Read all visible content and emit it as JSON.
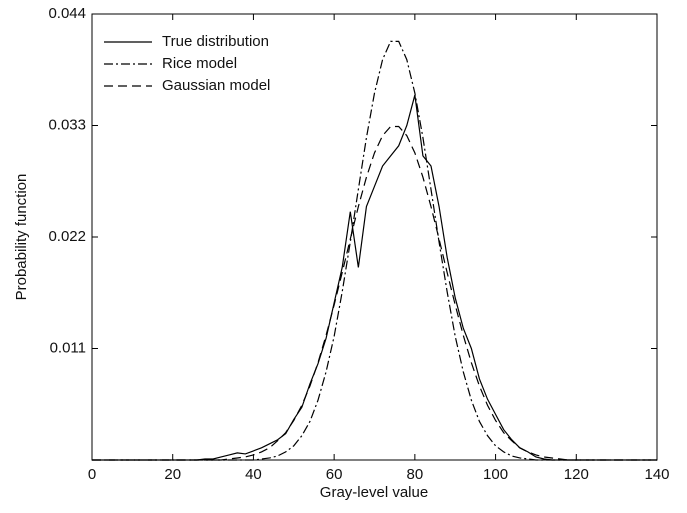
{
  "chart_data": {
    "type": "line",
    "xlabel": "Gray-level value",
    "ylabel": "Probability function",
    "x": [
      0,
      2,
      4,
      6,
      8,
      10,
      12,
      14,
      16,
      18,
      20,
      22,
      24,
      26,
      28,
      30,
      32,
      34,
      36,
      38,
      40,
      42,
      44,
      46,
      48,
      50,
      52,
      54,
      56,
      58,
      60,
      62,
      64,
      66,
      68,
      70,
      72,
      74,
      76,
      78,
      80,
      82,
      84,
      86,
      88,
      90,
      92,
      94,
      96,
      98,
      100,
      102,
      104,
      106,
      108,
      110,
      112,
      114,
      116,
      118,
      120,
      122,
      124,
      126,
      128,
      130,
      132,
      134,
      136,
      138,
      140
    ],
    "series": [
      {
        "name": "True distribution",
        "color": "#000000",
        "dash": "solid",
        "values": [
          0,
          0,
          0,
          0,
          0,
          0,
          0,
          0,
          0,
          0,
          0,
          0,
          0,
          0,
          0.0001,
          0.0001,
          0.0003,
          0.0005,
          0.0007,
          0.0006,
          0.0009,
          0.0012,
          0.0016,
          0.002,
          0.0026,
          0.004,
          0.0052,
          0.0075,
          0.0095,
          0.012,
          0.0155,
          0.019,
          0.0245,
          0.019,
          0.025,
          0.027,
          0.029,
          0.03,
          0.031,
          0.033,
          0.036,
          0.03,
          0.029,
          0.025,
          0.02,
          0.016,
          0.013,
          0.011,
          0.008,
          0.006,
          0.0045,
          0.003,
          0.002,
          0.0012,
          0.0008,
          0.0003,
          0.0001,
          0,
          0,
          0,
          0,
          0,
          0,
          0,
          0,
          0,
          0,
          0,
          0,
          0,
          0
        ]
      },
      {
        "name": "Rice model",
        "color": "#000000",
        "dash": "dashdot",
        "values": [
          0,
          0,
          0,
          0,
          0,
          0,
          0,
          0,
          0,
          0,
          0,
          0,
          0,
          0,
          0,
          0,
          0,
          0,
          0,
          0,
          0,
          0.0001,
          0.0002,
          0.0004,
          0.0008,
          0.0014,
          0.0024,
          0.0038,
          0.0059,
          0.0087,
          0.0122,
          0.0166,
          0.0215,
          0.0267,
          0.0318,
          0.0362,
          0.0395,
          0.0413,
          0.0413,
          0.0395,
          0.0362,
          0.0318,
          0.0267,
          0.0215,
          0.0166,
          0.0122,
          0.0087,
          0.0059,
          0.0038,
          0.0024,
          0.0014,
          0.0008,
          0.0004,
          0.0002,
          0.0001,
          0,
          0,
          0,
          0,
          0,
          0,
          0,
          0,
          0,
          0,
          0,
          0,
          0,
          0,
          0,
          0
        ]
      },
      {
        "name": "Gaussian model",
        "color": "#000000",
        "dash": "dashed",
        "values": [
          0,
          0,
          0,
          0,
          0,
          0,
          0,
          0,
          0,
          0,
          0,
          0,
          0,
          0,
          0,
          0,
          0,
          0.0001,
          0.0002,
          0.0003,
          0.0005,
          0.0008,
          0.0012,
          0.0019,
          0.0027,
          0.0039,
          0.0054,
          0.0073,
          0.0096,
          0.0123,
          0.0153,
          0.0185,
          0.0218,
          0.025,
          0.0279,
          0.0303,
          0.032,
          0.0329,
          0.0329,
          0.032,
          0.0303,
          0.0279,
          0.025,
          0.0218,
          0.0185,
          0.0153,
          0.0123,
          0.0096,
          0.0073,
          0.0054,
          0.0039,
          0.0027,
          0.0019,
          0.0012,
          0.0008,
          0.0005,
          0.0003,
          0.0002,
          0.0001,
          0,
          0,
          0,
          0,
          0,
          0,
          0,
          0,
          0,
          0,
          0,
          0
        ]
      }
    ],
    "xlim": [
      0,
      140
    ],
    "xticks": [
      0,
      20,
      40,
      60,
      80,
      100,
      120,
      140
    ],
    "ylim": [
      0,
      0.044
    ],
    "yticks": [
      0.011,
      0.022,
      0.033,
      0.044
    ],
    "grid": false,
    "legend": "upper left"
  }
}
